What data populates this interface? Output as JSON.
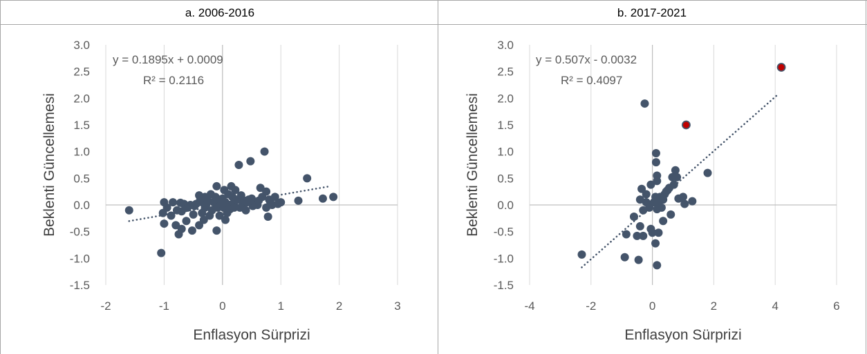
{
  "chart_data": [
    {
      "panel": "a",
      "type": "scatter",
      "title": "a. 2006-2016",
      "xlabel": "Enflasyon Sürprizi",
      "ylabel": "Beklenti Güncellemesi",
      "xlim": [
        -2,
        3
      ],
      "ylim": [
        -1.5,
        3.0
      ],
      "xticks": [
        -2,
        -1,
        0,
        1,
        2,
        3
      ],
      "yticks": [
        -1.5,
        -1.0,
        -0.5,
        0.0,
        0.5,
        1.0,
        1.5,
        2.0,
        2.5,
        3.0
      ],
      "xtick_labels": [
        "-2",
        "-1",
        "0",
        "1",
        "2",
        "3"
      ],
      "ytick_labels": [
        "-1.5",
        "-1.0",
        "-0.5",
        "0.0",
        "0.5",
        "1.0",
        "1.5",
        "2.0",
        "2.5",
        "3.0"
      ],
      "grid": "vertical",
      "point_color": "#44546a",
      "highlight_color": "#c00000",
      "trendline": {
        "equation": "y = 0.1895x + 0.0009",
        "r2": "R² = 0.2116",
        "slope": 0.1895,
        "intercept": 0.0009,
        "x_range": [
          -1.6,
          1.8
        ],
        "style": "dotted"
      },
      "points": [
        [
          -1.6,
          -0.1
        ],
        [
          -1.05,
          -0.9
        ],
        [
          -1.0,
          -0.35
        ],
        [
          -1.0,
          0.05
        ],
        [
          -1.02,
          -0.15
        ],
        [
          -0.95,
          -0.05
        ],
        [
          -0.88,
          -0.2
        ],
        [
          -0.85,
          0.05
        ],
        [
          -0.8,
          -0.38
        ],
        [
          -0.78,
          -0.1
        ],
        [
          -0.75,
          -0.55
        ],
        [
          -0.72,
          0.04
        ],
        [
          -0.7,
          -0.45
        ],
        [
          -0.7,
          -0.12
        ],
        [
          -0.66,
          0.02
        ],
        [
          -0.62,
          -0.3
        ],
        [
          -0.6,
          -0.05
        ],
        [
          -0.55,
          0.0
        ],
        [
          -0.52,
          -0.48
        ],
        [
          -0.5,
          -0.18
        ],
        [
          -0.48,
          -0.02
        ],
        [
          -0.45,
          0.02
        ],
        [
          -0.4,
          -0.38
        ],
        [
          -0.4,
          0.18
        ],
        [
          -0.38,
          0.1
        ],
        [
          -0.35,
          -0.15
        ],
        [
          -0.35,
          0.05
        ],
        [
          -0.32,
          -0.28
        ],
        [
          -0.3,
          0.15
        ],
        [
          -0.3,
          -0.05
        ],
        [
          -0.28,
          0.0
        ],
        [
          -0.25,
          0.08
        ],
        [
          -0.22,
          -0.2
        ],
        [
          -0.2,
          0.2
        ],
        [
          -0.18,
          -0.1
        ],
        [
          -0.15,
          0.05
        ],
        [
          -0.12,
          0.15
        ],
        [
          -0.1,
          -0.48
        ],
        [
          -0.1,
          0.35
        ],
        [
          -0.08,
          -0.05
        ],
        [
          -0.06,
          0.1
        ],
        [
          -0.05,
          -0.2
        ],
        [
          -0.03,
          0.0
        ],
        [
          0.0,
          0.12
        ],
        [
          0.02,
          -0.05
        ],
        [
          0.03,
          0.28
        ],
        [
          0.05,
          -0.28
        ],
        [
          0.05,
          0.05
        ],
        [
          0.08,
          -0.15
        ],
        [
          0.1,
          0.2
        ],
        [
          0.12,
          0.0
        ],
        [
          0.13,
          -0.08
        ],
        [
          0.15,
          0.35
        ],
        [
          0.17,
          0.15
        ],
        [
          0.2,
          0.05
        ],
        [
          0.2,
          -0.05
        ],
        [
          0.22,
          0.28
        ],
        [
          0.25,
          0.1
        ],
        [
          0.28,
          0.75
        ],
        [
          0.3,
          -0.05
        ],
        [
          0.32,
          0.18
        ],
        [
          0.35,
          0.02
        ],
        [
          0.38,
          0.08
        ],
        [
          0.4,
          -0.1
        ],
        [
          0.42,
          0.05
        ],
        [
          0.45,
          0.1
        ],
        [
          0.48,
          0.82
        ],
        [
          0.5,
          0.12
        ],
        [
          0.52,
          -0.02
        ],
        [
          0.55,
          0.05
        ],
        [
          0.6,
          0.0
        ],
        [
          0.62,
          0.08
        ],
        [
          0.65,
          0.32
        ],
        [
          0.68,
          0.15
        ],
        [
          0.72,
          1.0
        ],
        [
          0.75,
          0.25
        ],
        [
          0.75,
          -0.05
        ],
        [
          0.78,
          -0.22
        ],
        [
          0.8,
          0.1
        ],
        [
          0.82,
          0.05
        ],
        [
          0.85,
          0.0
        ],
        [
          0.9,
          0.15
        ],
        [
          0.95,
          0.02
        ],
        [
          1.0,
          0.05
        ],
        [
          1.3,
          0.08
        ],
        [
          1.45,
          0.5
        ],
        [
          1.72,
          0.12
        ],
        [
          1.9,
          0.15
        ]
      ],
      "highlight_points": []
    },
    {
      "panel": "b",
      "type": "scatter",
      "title": "b. 2017-2021",
      "xlabel": "Enflasyon Sürprizi",
      "ylabel": "Beklenti Güncellemesi",
      "xlim": [
        -4,
        6
      ],
      "ylim": [
        -1.5,
        3.0
      ],
      "xticks": [
        -4,
        -2,
        0,
        2,
        4,
        6
      ],
      "yticks": [
        -1.5,
        -1.0,
        -0.5,
        0.0,
        0.5,
        1.0,
        1.5,
        2.0,
        2.5,
        3.0
      ],
      "xtick_labels": [
        "-4",
        "-2",
        "0",
        "2",
        "4",
        "6"
      ],
      "ytick_labels": [
        "-1.5",
        "-1.0",
        "-0.5",
        "0.0",
        "0.5",
        "1.0",
        "1.5",
        "2.0",
        "2.5",
        "3.0"
      ],
      "grid": "vertical",
      "point_color": "#44546a",
      "highlight_color": "#c00000",
      "trendline": {
        "equation": "y = 0.507x - 0.0032",
        "r2": "R² = 0.4097",
        "slope": 0.507,
        "intercept": -0.0032,
        "x_range": [
          -2.3,
          4.1
        ],
        "style": "dotted"
      },
      "points": [
        [
          -2.3,
          -0.93
        ],
        [
          -0.9,
          -0.98
        ],
        [
          -0.85,
          -0.55
        ],
        [
          -0.6,
          -0.22
        ],
        [
          -0.5,
          -0.58
        ],
        [
          -0.45,
          -1.03
        ],
        [
          -0.4,
          -0.4
        ],
        [
          -0.4,
          0.1
        ],
        [
          -0.35,
          0.3
        ],
        [
          -0.3,
          -0.1
        ],
        [
          -0.3,
          -0.58
        ],
        [
          -0.25,
          1.9
        ],
        [
          -0.2,
          0.05
        ],
        [
          -0.2,
          0.2
        ],
        [
          -0.1,
          -0.05
        ],
        [
          -0.05,
          0.38
        ],
        [
          -0.05,
          -0.45
        ],
        [
          0.0,
          -0.52
        ],
        [
          0.05,
          0.05
        ],
        [
          0.1,
          0.15
        ],
        [
          0.1,
          -0.72
        ],
        [
          0.12,
          0.97
        ],
        [
          0.12,
          0.8
        ],
        [
          0.15,
          0.55
        ],
        [
          0.15,
          0.45
        ],
        [
          0.15,
          -1.13
        ],
        [
          0.15,
          -0.08
        ],
        [
          0.2,
          -0.52
        ],
        [
          0.2,
          0.05
        ],
        [
          0.25,
          0.15
        ],
        [
          0.3,
          -0.05
        ],
        [
          0.35,
          0.1
        ],
        [
          0.35,
          -0.3
        ],
        [
          0.4,
          0.2
        ],
        [
          0.45,
          0.25
        ],
        [
          0.5,
          0.28
        ],
        [
          0.55,
          0.32
        ],
        [
          0.6,
          -0.18
        ],
        [
          0.65,
          0.52
        ],
        [
          0.7,
          0.38
        ],
        [
          0.75,
          0.65
        ],
        [
          0.8,
          0.52
        ],
        [
          0.85,
          0.12
        ],
        [
          1.0,
          0.15
        ],
        [
          1.05,
          0.02
        ],
        [
          1.3,
          0.07
        ],
        [
          1.8,
          0.6
        ]
      ],
      "highlight_points": [
        [
          1.1,
          1.5
        ],
        [
          4.2,
          2.58
        ]
      ]
    }
  ]
}
